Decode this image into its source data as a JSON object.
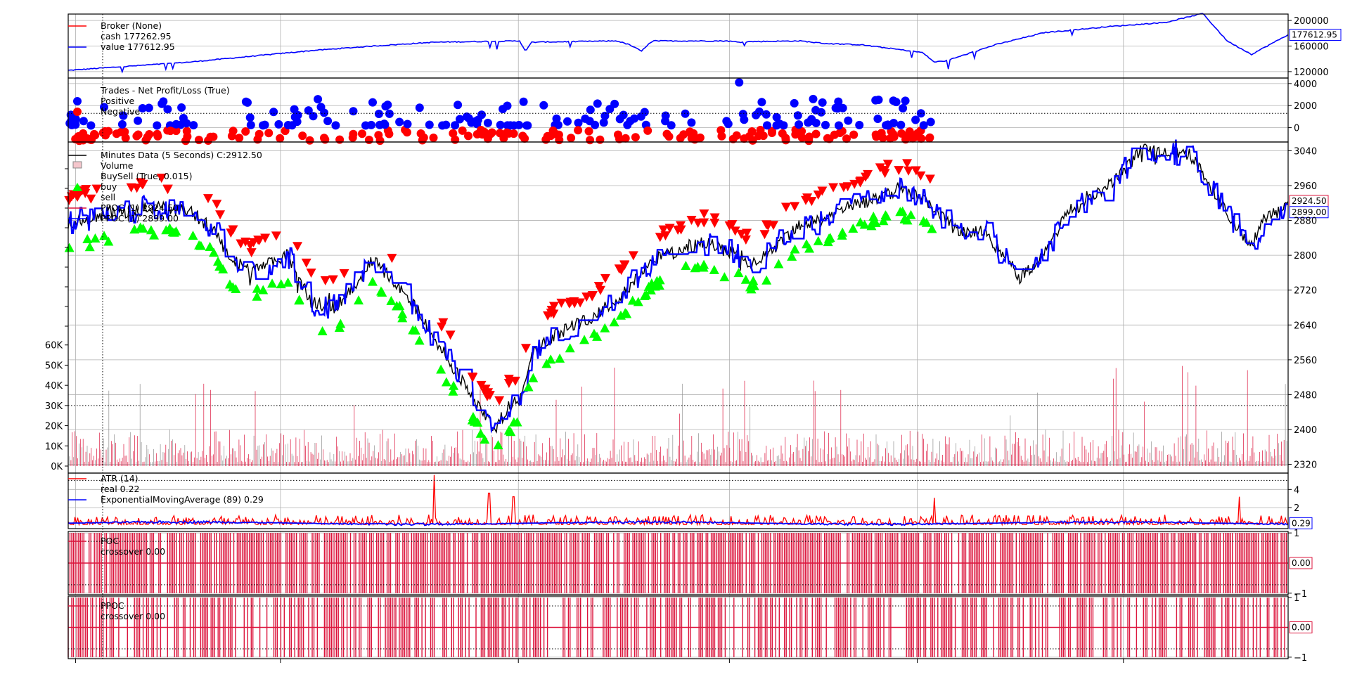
{
  "colors": {
    "value_line": "#0000ff",
    "cash_line": "#ff0000",
    "price_line": "#000000",
    "buy_marker": "#00ff00",
    "sell_marker": "#ff0000",
    "positive_trade": "#0000ff",
    "negative_trade": "#ff0000",
    "volume_bar": "#dc143c",
    "crossover_bar": "#dc143c",
    "grid": "#b0b0b0"
  },
  "chart_data": [
    {
      "type": "line",
      "legend": [
        "Broker (None)",
        "cash 177262.95",
        "value 177612.95"
      ],
      "yticks": [
        "200000",
        "160000",
        "120000"
      ],
      "ylim": [
        110000,
        210000
      ],
      "last_value_tag": "177612.95",
      "series": [
        {
          "name": "value",
          "x": [
            0,
            10,
            20,
            25,
            30,
            37,
            37.5,
            38,
            45,
            46,
            47,
            47.5,
            48,
            54,
            55,
            56,
            60,
            62,
            65,
            70,
            71,
            72,
            76,
            80,
            84,
            85,
            90,
            93,
            95,
            97,
            100
          ],
          "y": [
            122000,
            135000,
            153000,
            160000,
            166000,
            168000,
            152000,
            166000,
            168000,
            162000,
            152000,
            162000,
            168000,
            168000,
            166000,
            167000,
            168000,
            164000,
            162000,
            150000,
            135000,
            137000,
            162000,
            181000,
            188000,
            190000,
            197000,
            211000,
            168000,
            147000,
            177612.95
          ]
        }
      ]
    },
    {
      "type": "scatter",
      "legend": [
        "Trades - Net Profit/Loss (True)",
        "Positive",
        "Negative"
      ],
      "yticks": [
        "4000",
        "2000",
        "0"
      ],
      "ylim": [
        -1300,
        4500
      ],
      "series": [
        {
          "name": "Positive",
          "x_range": [
            0,
            71
          ],
          "values_range": [
            100,
            4200
          ]
        },
        {
          "name": "Negative",
          "x_range": [
            0,
            71
          ],
          "values_range": [
            -1200,
            -100
          ]
        }
      ]
    },
    {
      "type": "line",
      "legend": [
        "Minutes Data (5 Seconds) C:2912.50",
        "Volume",
        "BuySell (True, 0.015)",
        "buy",
        "sell",
        "PPOC (1) 2924.50",
        "PPOC (1) 2899.00"
      ],
      "yticks": [
        "3040",
        "2960",
        "2880",
        "2800",
        "2720",
        "2640",
        "2560",
        "2480",
        "2400",
        "2320"
      ],
      "ylim": [
        2300,
        3060
      ],
      "volume_yticks": [
        "60K",
        "50K",
        "40K",
        "30K",
        "20K",
        "10K",
        "0K"
      ],
      "volume_ylim": [
        0,
        62000
      ],
      "last_value_tags": [
        "2924.50",
        "2899.00"
      ],
      "series": [
        {
          "name": "Minutes Data (5 Seconds)",
          "x": [
            0,
            3,
            7,
            10,
            12,
            13,
            15,
            18,
            20,
            22,
            25,
            28,
            30,
            33,
            35,
            36,
            37,
            38,
            40,
            43,
            45,
            48,
            50,
            52,
            55,
            56,
            58,
            60,
            62,
            63,
            65,
            68,
            70,
            72,
            73,
            75,
            78,
            80,
            82,
            85,
            88,
            90,
            92,
            95,
            97,
            98,
            100
          ],
          "y": [
            2875,
            2890,
            2910,
            2900,
            2860,
            2800,
            2760,
            2800,
            2690,
            2680,
            2790,
            2700,
            2610,
            2480,
            2400,
            2450,
            2470,
            2580,
            2620,
            2660,
            2700,
            2790,
            2810,
            2830,
            2800,
            2780,
            2820,
            2870,
            2880,
            2900,
            2920,
            2950,
            2930,
            2880,
            2850,
            2860,
            2750,
            2800,
            2900,
            2950,
            3040,
            3040,
            3030,
            2900,
            2820,
            2880,
            2912.5
          ]
        },
        {
          "name": "buy",
          "x_range": [
            0,
            71
          ],
          "offset_below": 40
        },
        {
          "name": "sell",
          "x_range": [
            0,
            71
          ],
          "offset_above": 45
        },
        {
          "name": "Volume",
          "typical": [
            2000,
            18000
          ],
          "spikes_max": 53000
        }
      ]
    },
    {
      "type": "line",
      "legend": [
        "ATR (14)",
        "real 0.22",
        "ExponentialMovingAverage (89) 0.29"
      ],
      "yticks": [
        "4",
        "2"
      ],
      "ylim": [
        -0.3,
        5.8
      ],
      "last_value_tag": "0.29",
      "series": [
        {
          "name": "ATR (14)",
          "typical": [
            0.1,
            1.0
          ],
          "spikes": [
            5.6,
            3.6,
            3.2,
            3.1,
            3.2
          ]
        },
        {
          "name": "ExponentialMovingAverage (89)",
          "typical": [
            0.2,
            0.8
          ],
          "last": 0.29
        }
      ]
    },
    {
      "type": "bar",
      "legend": [
        "POC",
        "crossover 0.00"
      ],
      "yticks": [
        "1",
        "−1"
      ],
      "ylim": [
        -1.05,
        1.05
      ],
      "last_value_tag": "0.00",
      "values_domain": [
        -1,
        0,
        1
      ]
    },
    {
      "type": "bar",
      "legend": [
        "PPOC",
        "crossover 0.00"
      ],
      "yticks": [
        "1",
        "−1"
      ],
      "ylim": [
        -1.05,
        1.05
      ],
      "last_value_tag": "0.00",
      "values_domain": [
        -1,
        0,
        1
      ]
    }
  ]
}
